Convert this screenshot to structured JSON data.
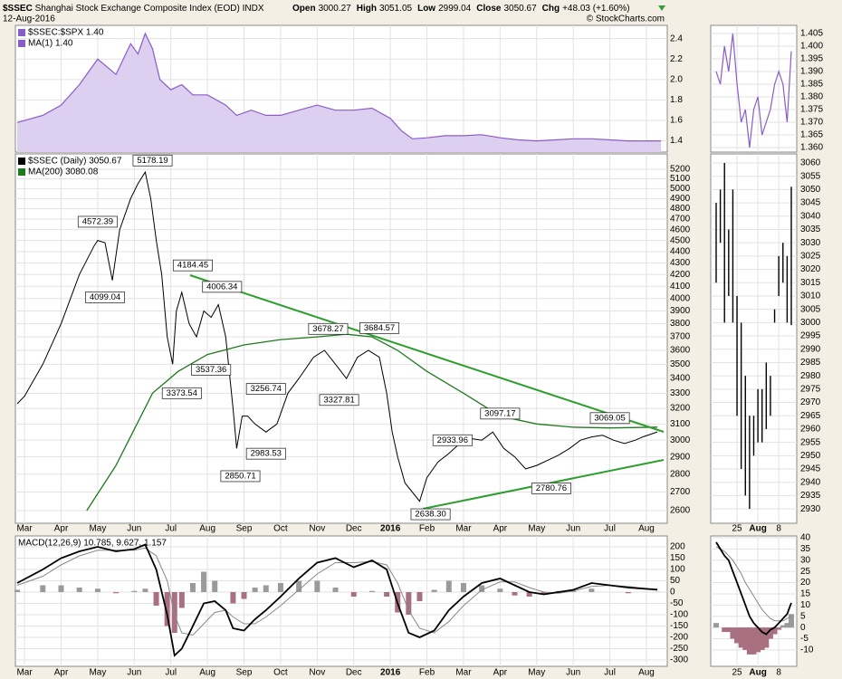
{
  "header": {
    "symbol": "$SSEC",
    "name": "Shanghai Stock Exchange Composite Index (EOD)",
    "exchange": "INDX",
    "date": "12-Aug-2016",
    "quote": [
      {
        "label": "Open",
        "value": 3000.27
      },
      {
        "label": "High",
        "value": 3051.05
      },
      {
        "label": "Low",
        "value": 2999.04
      },
      {
        "label": "Close",
        "value": 3050.67
      },
      {
        "label": "Chg",
        "value": "+48.03 (+1.60%)"
      }
    ],
    "copyright": "© StockCharts.com"
  },
  "chart_data": [
    {
      "type": "area",
      "labels": [
        "$SSEC:$SPX 1.40",
        "MA(1) 1.40"
      ],
      "color": "#8a5cc8",
      "fill": "#dccff0",
      "x": [
        -0.2,
        0.5,
        1,
        1.5,
        2,
        2.5,
        2.9,
        3.1,
        3.3,
        3.5,
        3.7,
        4,
        4.3,
        4.6,
        5,
        5.5,
        5.8,
        6.2,
        6.6,
        7,
        7.5,
        8,
        8.5,
        9,
        9.5,
        10,
        10.3,
        10.6,
        11,
        11.5,
        12,
        12.5,
        13,
        13.5,
        14,
        14.5,
        15,
        15.5,
        16,
        16.5,
        17.3,
        17.4
      ],
      "values": [
        1.58,
        1.65,
        1.75,
        1.95,
        2.2,
        2.05,
        2.35,
        2.25,
        2.45,
        2.3,
        2.0,
        1.9,
        1.95,
        1.85,
        1.85,
        1.75,
        1.65,
        1.7,
        1.65,
        1.65,
        1.7,
        1.75,
        1.7,
        1.7,
        1.72,
        1.62,
        1.5,
        1.42,
        1.43,
        1.45,
        1.45,
        1.46,
        1.43,
        1.41,
        1.4,
        1.41,
        1.42,
        1.42,
        1.41,
        1.4,
        1.4,
        1.4
      ],
      "ylim": [
        1.29,
        2.53
      ],
      "yticks": [
        1.4,
        1.6,
        1.8,
        {
          "value": 2.0,
          "label": "2.0"
        },
        2.2,
        2.4
      ],
      "grid": true
    },
    {
      "type": "line",
      "log": true,
      "grid": true,
      "xlim": [
        -0.25,
        17.57
      ],
      "xticks": [
        {
          "value": 0,
          "label": "Mar"
        },
        {
          "value": 1,
          "label": "Apr"
        },
        {
          "value": 2,
          "label": "May"
        },
        {
          "value": 3,
          "label": "Jun"
        },
        {
          "value": 4,
          "label": "Jul"
        },
        {
          "value": 5,
          "label": "Aug"
        },
        {
          "value": 6,
          "label": "Sep"
        },
        {
          "value": 7,
          "label": "Oct"
        },
        {
          "value": 8,
          "label": "Nov"
        },
        {
          "value": 9,
          "label": "Dec"
        },
        {
          "value": 10,
          "label": "2016"
        },
        {
          "value": 11,
          "label": "Feb"
        },
        {
          "value": 12,
          "label": "Mar"
        },
        {
          "value": 13,
          "label": "Apr"
        },
        {
          "value": 14,
          "label": "May"
        },
        {
          "value": 15,
          "label": "Jun"
        },
        {
          "value": 16,
          "label": "Jul"
        },
        {
          "value": 17,
          "label": "Aug"
        }
      ],
      "ylim": [
        2534,
        5365
      ],
      "yticks": [
        2600,
        2700,
        2800,
        2900,
        3000,
        3100,
        3200,
        3300,
        3400,
        3500,
        3600,
        3700,
        3800,
        3900,
        4000,
        4100,
        4200,
        4300,
        4400,
        4500,
        4600,
        4700,
        4800,
        4900,
        5000,
        5100,
        5200
      ],
      "series": [
        {
          "name": "$SSEC (Daily) 3050.67",
          "color": "#000000",
          "x": [
            -0.2,
            0,
            0.5,
            1,
            1.5,
            1.9,
            2,
            2.2,
            2.4,
            2.6,
            2.9,
            3.1,
            3.3,
            3.45,
            3.6,
            3.75,
            3.9,
            4.05,
            4.15,
            4.3,
            4.5,
            4.7,
            4.9,
            5.1,
            5.3,
            5.5,
            5.7,
            5.8,
            5.95,
            6.1,
            6.3,
            6.6,
            6.9,
            7.2,
            7.5,
            7.9,
            8.2,
            8.5,
            8.8,
            9.1,
            9.4,
            9.7,
            9.9,
            10.05,
            10.2,
            10.4,
            10.6,
            10.8,
            11,
            11.3,
            11.6,
            11.9,
            12.2,
            12.5,
            12.8,
            13.1,
            13.4,
            13.7,
            14,
            14.3,
            14.6,
            14.9,
            15.2,
            15.5,
            15.8,
            16.1,
            16.4,
            16.7,
            16.9,
            17.3
          ],
          "values": [
            3230,
            3280,
            3500,
            3800,
            4200,
            4450,
            4500,
            4480,
            4150,
            4600,
            4900,
            5050,
            5170,
            4900,
            4500,
            4200,
            3700,
            3500,
            3900,
            4050,
            3800,
            3700,
            3900,
            3850,
            3950,
            3700,
            3200,
            2950,
            3150,
            3150,
            3100,
            3050,
            3100,
            3300,
            3400,
            3550,
            3600,
            3500,
            3400,
            3550,
            3600,
            3550,
            3300,
            3050,
            2900,
            2750,
            2700,
            2650,
            2780,
            2870,
            2920,
            2980,
            3010,
            3000,
            3050,
            2950,
            2900,
            2830,
            2850,
            2880,
            2910,
            2950,
            3000,
            3020,
            3030,
            3000,
            2980,
            3000,
            3020,
            3050.67
          ]
        },
        {
          "name": "MA(200) 3080.08",
          "color": "#1f7a1f",
          "x": [
            1.7,
            2.5,
            3.5,
            4.2,
            5,
            6,
            7,
            8,
            8.8,
            9.5,
            10.2,
            11,
            12,
            13,
            14,
            15,
            16,
            17.3
          ],
          "values": [
            2600,
            2850,
            3300,
            3450,
            3570,
            3640,
            3680,
            3700,
            3720,
            3700,
            3600,
            3450,
            3300,
            3150,
            3100,
            3080,
            3075,
            3080.08
          ]
        }
      ],
      "annotations": [
        {
          "x": 3.5,
          "value": 5178.19,
          "label": "5178.19"
        },
        {
          "x": 2.0,
          "value": 4572.39,
          "label": "4572.39"
        },
        {
          "x": 2.2,
          "value": 4099.04,
          "label": "4099.04"
        },
        {
          "x": 4.6,
          "value": 4184.45,
          "label": "4184.45"
        },
        {
          "x": 5.4,
          "value": 4006.34,
          "label": "4006.34"
        },
        {
          "x": 5.1,
          "value": 3537.36,
          "label": "3537.36"
        },
        {
          "x": 4.3,
          "value": 3373.54,
          "label": "3373.54"
        },
        {
          "x": 6.6,
          "value": 3256.74,
          "label": "3256.74"
        },
        {
          "x": 6.6,
          "value": 2983.53,
          "label": "2983.53"
        },
        {
          "x": 5.9,
          "value": 2850.71,
          "label": "2850.71"
        },
        {
          "x": 8.3,
          "value": 3678.27,
          "label": "3678.27"
        },
        {
          "x": 8.6,
          "value": 3327.81,
          "label": "3327.81"
        },
        {
          "x": 9.7,
          "value": 3684.57,
          "label": "3684.57"
        },
        {
          "x": 11.1,
          "value": 2638.3,
          "label": "2638.30"
        },
        {
          "x": 11.7,
          "value": 2933.96,
          "label": "2933.96"
        },
        {
          "x": 13.0,
          "value": 3097.17,
          "label": "3097.17"
        },
        {
          "x": 14.4,
          "value": 2780.76,
          "label": "2780.76"
        },
        {
          "x": 16.0,
          "value": 3069.05,
          "label": "3069.05"
        }
      ]
    },
    {
      "type": "macd",
      "label": "MACD(12,26,9) 10.785, 9.627, 1.157",
      "macd_color": "#000000",
      "signal_color": "#888888",
      "color": "#9a9a9a",
      "negative_color": "#a87080",
      "x": [
        -0.2,
        0.5,
        1,
        1.5,
        2,
        2.5,
        3,
        3.3,
        3.6,
        3.9,
        4.1,
        4.3,
        4.6,
        4.9,
        5.2,
        5.5,
        5.7,
        6,
        6.3,
        6.6,
        7,
        7.5,
        8,
        8.5,
        9,
        9.5,
        9.9,
        10.2,
        10.5,
        10.8,
        11.2,
        11.6,
        12,
        12.5,
        13,
        13.4,
        13.8,
        14.2,
        14.6,
        15,
        15.5,
        16,
        16.5,
        17.3
      ],
      "macd": [
        40,
        100,
        150,
        180,
        200,
        180,
        190,
        210,
        100,
        -100,
        -280,
        -250,
        -150,
        -50,
        -40,
        -80,
        -160,
        -170,
        -120,
        -80,
        -20,
        60,
        130,
        150,
        110,
        140,
        100,
        -50,
        -180,
        -200,
        -170,
        -80,
        -20,
        40,
        60,
        30,
        0,
        -10,
        0,
        10,
        40,
        30,
        20,
        10.785
      ],
      "signal": [
        30,
        70,
        120,
        160,
        185,
        185,
        185,
        195,
        160,
        50,
        -100,
        -180,
        -190,
        -140,
        -90,
        -80,
        -110,
        -140,
        -140,
        -110,
        -60,
        10,
        80,
        130,
        130,
        135,
        120,
        40,
        -80,
        -160,
        -180,
        -130,
        -60,
        10,
        45,
        45,
        20,
        0,
        -5,
        5,
        25,
        30,
        25,
        9.627
      ],
      "histogram": [
        10,
        30,
        30,
        20,
        15,
        -5,
        5,
        15,
        -60,
        -150,
        -180,
        -70,
        40,
        90,
        50,
        0,
        -50,
        -30,
        20,
        30,
        40,
        50,
        50,
        20,
        -20,
        5,
        -20,
        -90,
        -100,
        -40,
        10,
        50,
        40,
        30,
        15,
        -15,
        -20,
        -10,
        5,
        5,
        15,
        0,
        -5,
        1.157
      ],
      "ylim": [
        -328,
        248
      ],
      "yticks": [
        200,
        150,
        100,
        50,
        0,
        -50,
        -100,
        -150,
        -200,
        -250,
        -300
      ],
      "grid": true
    },
    {
      "type": "line",
      "color": "#8a5cc8",
      "values": [
        1.39,
        1.385,
        1.4,
        1.39,
        1.405,
        1.385,
        1.37,
        1.375,
        1.36,
        1.375,
        1.38,
        1.365,
        1.37,
        1.375,
        1.385,
        1.39,
        1.385,
        1.37,
        1.398
      ],
      "ylim": [
        1.3582,
        1.4082
      ],
      "yticks": [
        {
          "value": 1.36,
          "label": "1.360"
        },
        1.365,
        {
          "value": 1.37,
          "label": "1.370"
        },
        1.375,
        {
          "value": 1.38,
          "label": "1.380"
        },
        1.385,
        {
          "value": 1.39,
          "label": "1.390"
        },
        1.395,
        {
          "value": 1.4,
          "label": "1.400"
        },
        1.405
      ],
      "grid": true
    },
    {
      "type": "range",
      "color": "#000000",
      "categories": [
        null,
        null,
        null,
        null,
        null,
        "25",
        null,
        null,
        null,
        null,
        "Aug",
        null,
        null,
        null,
        null,
        "8",
        null,
        null,
        null
      ],
      "high": [
        3045,
        3050,
        3060,
        3035,
        3050,
        3010,
        3000,
        2980,
        2965,
        2965,
        2975,
        2975,
        2985,
        2980,
        3005,
        3025,
        3030,
        3025,
        3051.05
      ],
      "low": [
        3015,
        3030,
        3000,
        3010,
        3000,
        2965,
        2945,
        2935,
        2930,
        2950,
        2955,
        2955,
        2960,
        2965,
        3000,
        3010,
        3015,
        3000,
        2999.04
      ],
      "ylim": [
        2924.6,
        3063.4
      ],
      "yticks": [
        2930,
        2935,
        2940,
        2945,
        2950,
        2955,
        2960,
        2965,
        2970,
        2975,
        2980,
        2985,
        2990,
        2995,
        3000,
        3005,
        3010,
        3015,
        3020,
        3025,
        3030,
        3035,
        3040,
        3045,
        3050,
        3055,
        3060
      ],
      "grid": true
    },
    {
      "type": "macd",
      "macd_color": "#000000",
      "signal_color": "#888888",
      "color": "#9a9a9a",
      "negative_color": "#a87080",
      "macd": [
        38,
        35,
        32,
        30,
        25,
        20,
        15,
        10,
        5,
        2,
        0,
        -2,
        -3,
        -1,
        0,
        2,
        4,
        6,
        11
      ],
      "signal": [
        36,
        35,
        34,
        32,
        30,
        27,
        24,
        20,
        17,
        14,
        11,
        8,
        6,
        4,
        3,
        3,
        3,
        4,
        5
      ],
      "histogram": [
        2,
        0,
        -2,
        -2,
        -5,
        -7,
        -9,
        -10,
        -12,
        -12,
        -11,
        -10,
        -9,
        -5,
        -3,
        -1,
        1,
        2,
        6
      ],
      "ylim": [
        -17.3,
        40.8
      ],
      "yticks": [
        40,
        35,
        30,
        25,
        20,
        15,
        10,
        5,
        0,
        -5,
        -10
      ],
      "grid": true
    }
  ]
}
